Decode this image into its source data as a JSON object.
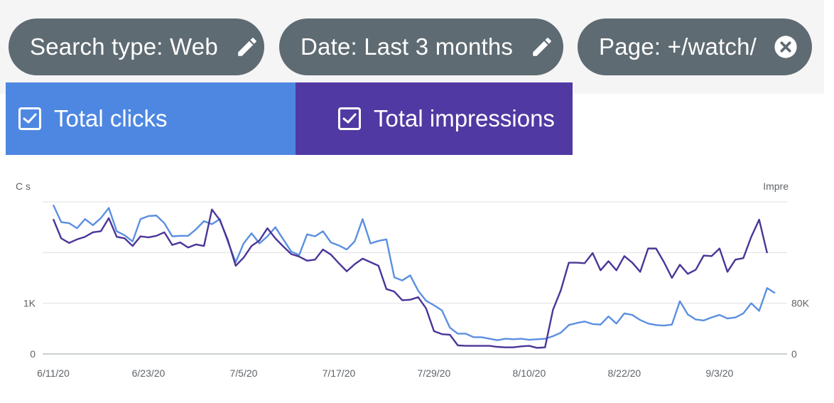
{
  "filters": {
    "search_type": {
      "label": "Search type: Web",
      "icon": "pencil-icon"
    },
    "date": {
      "label": "Date: Last 3 months",
      "icon": "pencil-icon"
    },
    "page": {
      "label": "Page: +/watch/",
      "icon": "close-circle-icon"
    }
  },
  "metrics": {
    "clicks": {
      "label": "Total clicks",
      "color": "#4e87e2",
      "checked": true
    },
    "impressions": {
      "label": "Total impressions",
      "color": "#5139a3",
      "checked": true
    }
  },
  "colors": {
    "chip_bg": "#5f6b73",
    "clicks_line": "#5b8fe0",
    "impressions_line": "#4b3598",
    "gridline": "#e0e0e0",
    "axis_text": "#5f6368"
  },
  "chart_data": {
    "type": "line",
    "left_axis_title": "C  s",
    "right_axis_title": "Impre",
    "left_ticks": [
      {
        "value": 0,
        "label": "0"
      },
      {
        "value": 1000,
        "label": "1K"
      }
    ],
    "right_ticks": [
      {
        "value": 0,
        "label": "0"
      },
      {
        "value": 80000,
        "label": "80K"
      }
    ],
    "left_ylim": [
      0,
      3000
    ],
    "right_ylim": [
      0,
      240000
    ],
    "x_ticks": [
      {
        "index": 0,
        "label": "6/11/20"
      },
      {
        "index": 12,
        "label": "6/23/20"
      },
      {
        "index": 24,
        "label": "7/5/20"
      },
      {
        "index": 36,
        "label": "7/17/20"
      },
      {
        "index": 48,
        "label": "7/29/20"
      },
      {
        "index": 60,
        "label": "8/10/20"
      },
      {
        "index": 72,
        "label": "8/22/20"
      },
      {
        "index": 84,
        "label": "9/3/20"
      }
    ],
    "grid": true,
    "series": [
      {
        "name": "Total clicks",
        "axis": "left",
        "color": "#5b8fe0",
        "values": [
          2940,
          2600,
          2580,
          2480,
          2660,
          2540,
          2680,
          2880,
          2420,
          2340,
          2220,
          2660,
          2720,
          2730,
          2580,
          2320,
          2330,
          2330,
          2460,
          2620,
          2560,
          2660,
          2220,
          1810,
          2180,
          2380,
          2180,
          2320,
          2500,
          2260,
          2020,
          1950,
          2360,
          2320,
          2420,
          2200,
          2140,
          2060,
          2220,
          2660,
          2180,
          2230,
          2260,
          1510,
          1450,
          1550,
          1250,
          1050,
          960,
          860,
          520,
          400,
          400,
          330,
          330,
          300,
          270,
          300,
          290,
          300,
          280,
          290,
          300,
          350,
          420,
          570,
          610,
          640,
          590,
          580,
          740,
          600,
          800,
          770,
          670,
          600,
          570,
          560,
          580,
          1040,
          780,
          680,
          660,
          720,
          770,
          700,
          720,
          800,
          1000,
          850,
          1300,
          1200
        ]
      },
      {
        "name": "Total impressions",
        "axis": "left",
        "color": "#4b3598",
        "values": [
          2660,
          2280,
          2190,
          2260,
          2310,
          2400,
          2420,
          2680,
          2310,
          2280,
          2130,
          2320,
          2300,
          2330,
          2400,
          2150,
          2200,
          2100,
          2160,
          2130,
          2850,
          2640,
          2250,
          1740,
          1900,
          2130,
          2240,
          2480,
          2280,
          2120,
          1970,
          1920,
          1840,
          1860,
          2060,
          1960,
          1790,
          1630,
          1770,
          1880,
          1810,
          1740,
          1280,
          1230,
          1060,
          1070,
          1120,
          900,
          450,
          390,
          380,
          170,
          160,
          160,
          160,
          160,
          140,
          130,
          130,
          150,
          160,
          120,
          130,
          870,
          1260,
          1800,
          1800,
          1790,
          1990,
          1650,
          1830,
          1650,
          1930,
          1800,
          1620,
          2080,
          2080,
          1810,
          1500,
          1760,
          1580,
          1660,
          1940,
          1930,
          2080,
          1620,
          1860,
          1890,
          2310,
          2650,
          1990
        ]
      }
    ]
  }
}
